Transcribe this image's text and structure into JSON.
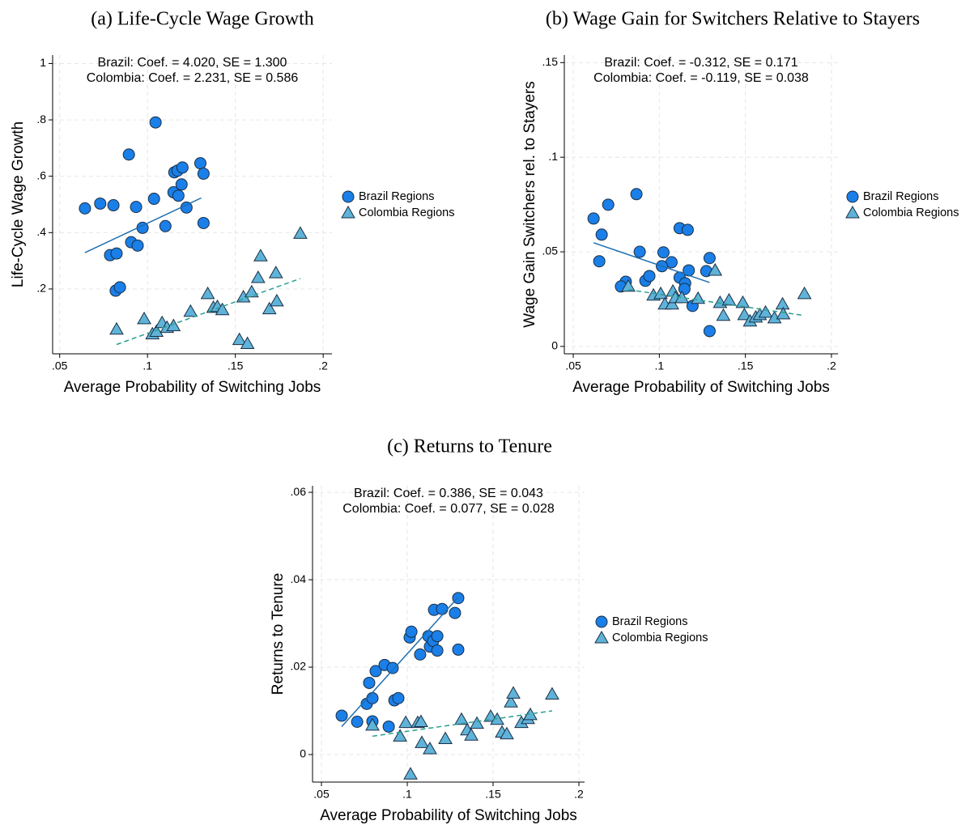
{
  "chart_data": [
    {
      "type": "scatter",
      "title": "(a)  Life-Cycle Wage Growth",
      "xlabel": "Average Probability of Switching Jobs",
      "ylabel": "Life-Cycle Wage Growth",
      "annotations": [
        "Brazil: Coef. =  4.020, SE =  1.300",
        "Colombia: Coef. =  2.231, SE =  0.586"
      ],
      "xlim": [
        0.046,
        0.205
      ],
      "ylim": [
        -0.03,
        1.03
      ],
      "xticks": [
        {
          "value": 0.05,
          "label": ".05"
        },
        {
          "value": 0.1,
          "label": ".1"
        },
        {
          "value": 0.15,
          "label": ".15"
        },
        {
          "value": 0.2,
          "label": ".2"
        }
      ],
      "yticks": [
        {
          "value": 0.2,
          "label": ".2"
        },
        {
          "value": 0.4,
          "label": ".4"
        },
        {
          "value": 0.6,
          "label": ".6"
        },
        {
          "value": 0.8,
          "label": ".8"
        },
        1
      ],
      "grid": true,
      "series": [
        {
          "name": "Brazil Regions",
          "color": "#1a7fe8",
          "marker": "circle",
          "x": [
            0.0644,
            0.0731,
            0.0806,
            0.0894,
            0.0935,
            0.1046,
            0.1037,
            0.0972,
            0.0907,
            0.0944,
            0.0787,
            0.0824,
            0.0819,
            0.0843,
            0.1102,
            0.1148,
            0.1153,
            0.1171,
            0.1199,
            0.1176,
            0.1194,
            0.1222,
            0.1301,
            0.1319,
            0.1319
          ],
          "values": [
            0.486,
            0.503,
            0.497,
            0.677,
            0.491,
            0.791,
            0.52,
            0.417,
            0.366,
            0.354,
            0.32,
            0.326,
            0.194,
            0.206,
            0.423,
            0.543,
            0.614,
            0.62,
            0.631,
            0.531,
            0.571,
            0.489,
            0.646,
            0.609,
            0.434
          ],
          "fit": {
            "x": [
              0.0644,
              0.1306
            ],
            "values": [
              0.329,
              0.523
            ],
            "color": "#1f6fb0",
            "style": "solid"
          }
        },
        {
          "name": "Colombia Regions",
          "color": "#5fb3d9",
          "marker": "triangle",
          "x": [
            0.0824,
            0.0981,
            0.1028,
            0.1051,
            0.1083,
            0.1111,
            0.1148,
            0.1245,
            0.1343,
            0.1375,
            0.1398,
            0.1426,
            0.1523,
            0.1546,
            0.1569,
            0.1593,
            0.163,
            0.1644,
            0.1694,
            0.1731,
            0.1736,
            0.187
          ],
          "values": [
            0.057,
            0.094,
            0.04,
            0.049,
            0.08,
            0.063,
            0.069,
            0.12,
            0.183,
            0.134,
            0.137,
            0.126,
            0.02,
            0.171,
            0.006,
            0.189,
            0.24,
            0.317,
            0.129,
            0.257,
            0.157,
            0.397
          ],
          "fit": {
            "x": [
              0.0824,
              0.187
            ],
            "values": [
              0.003,
              0.237
            ],
            "color": "#2a9d8f",
            "style": "dashed"
          }
        }
      ]
    },
    {
      "type": "scatter",
      "title": "(b)  Wage Gain for Switchers Relative to Stayers",
      "xlabel": "Average Probability of Switching Jobs",
      "ylabel": "Wage Gain Switchers rel. to Stayers",
      "annotations": [
        "Brazil: Coef. = -0.312, SE =  0.171",
        "Colombia: Coef. = -0.119, SE =  0.038"
      ],
      "xlim": [
        0.0448,
        0.2038
      ],
      "ylim": [
        -0.0039,
        0.154
      ],
      "xticks": [
        {
          "value": 0.05,
          "label": ".05"
        },
        {
          "value": 0.1,
          "label": ".1"
        },
        {
          "value": 0.15,
          "label": ".15"
        },
        {
          "value": 0.2,
          "label": ".2"
        }
      ],
      "yticks": [
        0,
        {
          "value": 0.05,
          "label": ".05"
        },
        {
          "value": 0.1,
          "label": ".1"
        },
        {
          "value": 0.15,
          "label": ".15"
        }
      ],
      "grid": true,
      "series": [
        {
          "name": "Brazil Regions",
          "color": "#1a7fe8",
          "marker": "circle",
          "x": [
            0.0618,
            0.0703,
            0.0867,
            0.0665,
            0.0651,
            0.0886,
            0.1024,
            0.1071,
            0.1015,
            0.0919,
            0.0942,
            0.0805,
            0.0777,
            0.1118,
            0.1165,
            0.1171,
            0.1118,
            0.115,
            0.1146,
            0.1193,
            0.1292,
            0.1273,
            0.1292
          ],
          "values": [
            0.0676,
            0.0749,
            0.0805,
            0.0591,
            0.045,
            0.05,
            0.0497,
            0.0445,
            0.0424,
            0.0347,
            0.0372,
            0.0342,
            0.0317,
            0.0625,
            0.0616,
            0.0402,
            0.0364,
            0.0334,
            0.0304,
            0.0214,
            0.0467,
            0.0398,
            0.0081
          ],
          "fit": {
            "x": [
              0.0618,
              0.1292
            ],
            "values": [
              0.0548,
              0.0338
            ],
            "color": "#1f6fb0",
            "style": "solid"
          }
        },
        {
          "name": "Colombia Regions",
          "color": "#5fb3d9",
          "marker": "triangle",
          "x": [
            0.082,
            0.0966,
            0.1008,
            0.1032,
            0.1074,
            0.1079,
            0.1093,
            0.1131,
            0.1225,
            0.1324,
            0.1353,
            0.1372,
            0.1405,
            0.1485,
            0.1494,
            0.1527,
            0.156,
            0.1584,
            0.1617,
            0.1669,
            0.1716,
            0.172,
            0.1843
          ],
          "values": [
            0.0317,
            0.027,
            0.0278,
            0.0223,
            0.0223,
            0.0291,
            0.0257,
            0.0257,
            0.0253,
            0.0402,
            0.0231,
            0.0163,
            0.0244,
            0.0231,
            0.0167,
            0.0133,
            0.0154,
            0.0167,
            0.018,
            0.015,
            0.0223,
            0.0171,
            0.0278
          ],
          "fit": {
            "x": [
              0.082,
              0.1843
            ],
            "values": [
              0.03,
              0.0163
            ],
            "color": "#2a9d8f",
            "style": "dashed"
          }
        }
      ]
    },
    {
      "type": "scatter",
      "title": "(c)  Returns to Tenure",
      "xlabel": "Average Probability of Switching Jobs",
      "ylabel": "Returns to Tenure",
      "annotations": [
        "Brazil: Coef. =  0.386, SE =  0.043",
        "Colombia: Coef. =  0.077, SE =  0.028"
      ],
      "xlim": [
        0.0448,
        0.2033
      ],
      "ylim": [
        -0.0063,
        0.0615
      ],
      "xticks": [
        {
          "value": 0.05,
          "label": ".05"
        },
        {
          "value": 0.1,
          "label": ".1"
        },
        {
          "value": 0.15,
          "label": ".15"
        },
        {
          "value": 0.2,
          "label": ".2"
        }
      ],
      "yticks": [
        0,
        {
          "value": 0.02,
          "label": ".02"
        },
        {
          "value": 0.04,
          "label": ".04"
        },
        {
          "value": 0.06,
          "label": ".06"
        }
      ],
      "grid": true,
      "series": [
        {
          "name": "Brazil Regions",
          "color": "#1a7fe8",
          "marker": "circle",
          "x": [
            0.0618,
            0.0708,
            0.0778,
            0.0764,
            0.0797,
            0.0797,
            0.0816,
            0.0868,
            0.0915,
            0.0892,
            0.0925,
            0.0948,
            0.1014,
            0.1024,
            0.1075,
            0.1123,
            0.1132,
            0.1151,
            0.1175,
            0.1175,
            0.1156,
            0.1203,
            0.1278,
            0.1297,
            0.1297
          ],
          "values": [
            0.0089,
            0.0075,
            0.0164,
            0.0116,
            0.0129,
            0.0076,
            0.0191,
            0.0205,
            0.0198,
            0.0064,
            0.0124,
            0.0129,
            0.0268,
            0.0281,
            0.0229,
            0.0271,
            0.0247,
            0.026,
            0.0271,
            0.0238,
            0.0331,
            0.0333,
            0.0324,
            0.0358,
            0.024
          ],
          "fit": {
            "x": [
              0.0618,
              0.1297
            ],
            "values": [
              0.0064,
              0.036
            ],
            "color": "#1f6fb0",
            "style": "solid"
          }
        },
        {
          "name": "Colombia Regions",
          "color": "#5fb3d9",
          "marker": "triangle",
          "x": [
            0.1019,
            0.0797,
            0.0958,
            0.0991,
            0.1061,
            0.108,
            0.1085,
            0.1132,
            0.1222,
            0.1316,
            0.1349,
            0.1373,
            0.1406,
            0.1486,
            0.1524,
            0.1552,
            0.158,
            0.1604,
            0.1618,
            0.1665,
            0.1703,
            0.1717,
            0.1844
          ],
          "values": [
            -0.0045,
            0.0067,
            0.0042,
            0.0073,
            0.0073,
            0.0075,
            0.0027,
            0.0013,
            0.0036,
            0.008,
            0.0056,
            0.0044,
            0.0071,
            0.0087,
            0.008,
            0.0051,
            0.0047,
            0.012,
            0.014,
            0.0073,
            0.0082,
            0.0091,
            0.0138
          ],
          "fit": {
            "x": [
              0.0797,
              0.1844
            ],
            "values": [
              0.0042,
              0.01
            ],
            "color": "#2a9d8f",
            "style": "dashed"
          }
        }
      ]
    }
  ]
}
